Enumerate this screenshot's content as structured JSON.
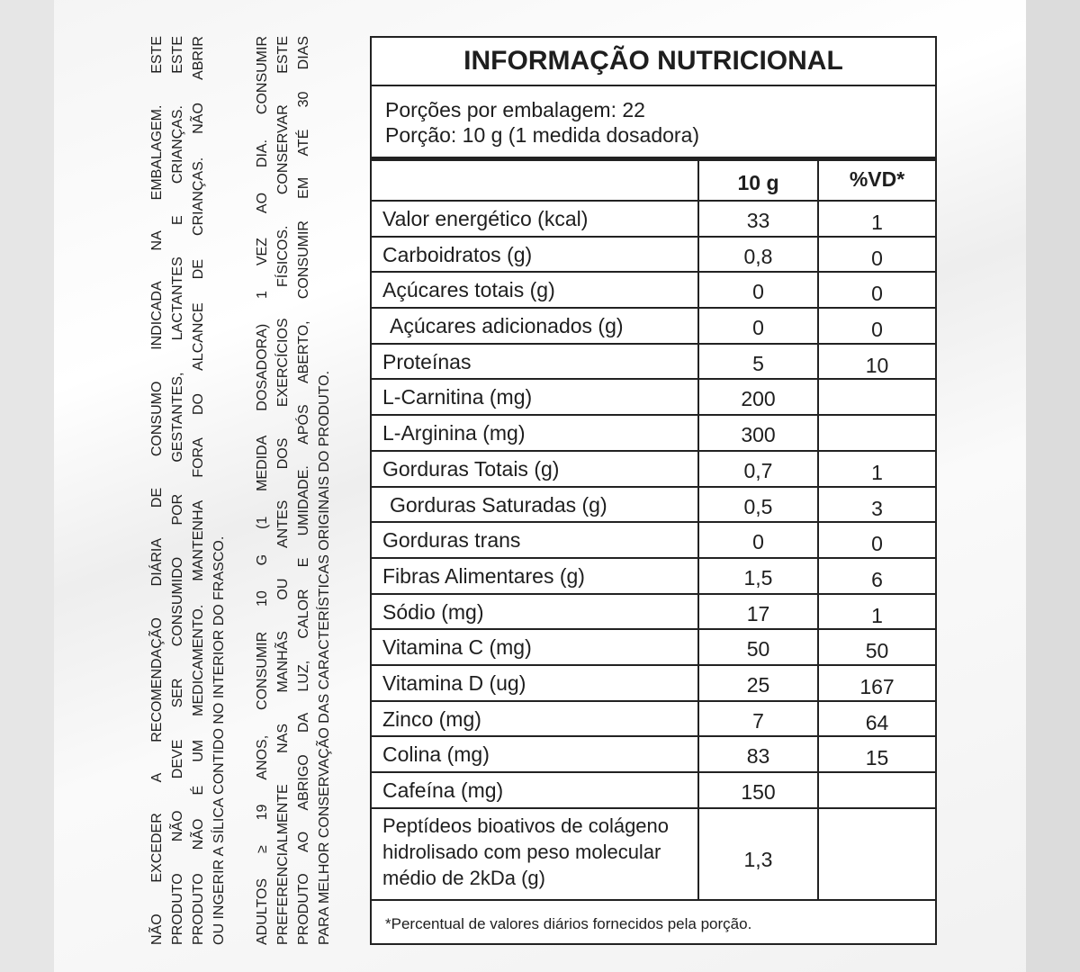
{
  "warnings": {
    "block1": [
      "NÃO EXCEDER A RECOMENDAÇÃO DIÁRIA DE CONSUMO INDICADA NA EMBALAGEM. ESTE",
      "PRODUTO NÃO DEVE SER CONSUMIDO POR GESTANTES, LACTANTES E CRIANÇAS. ESTE",
      "PRODUTO NÃO É UM MEDICAMENTO. MANTENHA FORA DO ALCANCE DE CRIANÇAS. NÃO ABRIR",
      "OU INGERIR A SÍLICA CONTIDO NO INTERIOR DO FRASCO."
    ],
    "block2": [
      "ADULTOS ≥ 19 ANOS, CONSUMIR 10 G (1 MEDIDA DOSADORA) 1 VEZ AO DIA. CONSUMIR",
      "PREFERENCIALMENTE NAS MANHÃS OU ANTES DOS EXERCÍCIOS FÍSICOS. CONSERVAR ESTE",
      "PRODUTO AO ABRIGO DA LUZ, CALOR E UMIDADE. APÓS ABERTO, CONSUMIR EM ATÉ 30 DIAS",
      "PARA MELHOR CONSERVAÇÃO DAS CARACTERÍSTICAS ORIGINAIS DO PRODUTO."
    ]
  },
  "table": {
    "title": "INFORMAÇÃO NUTRICIONAL",
    "servings": "Porções por embalagem: 22",
    "portion": "Porção: 10 g (1 medida dosadora)",
    "headers": [
      "",
      "10 g",
      "%VD*"
    ],
    "rows": [
      [
        "Valor energético (kcal)",
        "33",
        "1"
      ],
      [
        "Carboidratos (g)",
        "0,8",
        "0"
      ],
      [
        "Açúcares totais (g)",
        "0",
        "0"
      ],
      [
        "Açúcares adicionados (g)",
        "0",
        "0"
      ],
      [
        "Proteínas",
        "5",
        "10"
      ],
      [
        "L-Carnitina (mg)",
        "200",
        ""
      ],
      [
        "L-Arginina (mg)",
        "300",
        ""
      ],
      [
        "Gorduras Totais (g)",
        "0,7",
        "1"
      ],
      [
        "Gorduras Saturadas (g)",
        "0,5",
        "3"
      ],
      [
        "Gorduras trans",
        "0",
        "0"
      ],
      [
        "Fibras Alimentares (g)",
        "1,5",
        "6"
      ],
      [
        "Sódio (mg)",
        "17",
        "1"
      ],
      [
        "Vitamina C (mg)",
        "50",
        "50"
      ],
      [
        "Vitamina D (ug)",
        "25",
        "167"
      ],
      [
        "Zinco (mg)",
        "7",
        "64"
      ],
      [
        "Colina (mg)",
        "83",
        "15"
      ],
      [
        "Cafeína (mg)",
        "150",
        ""
      ]
    ],
    "last_row": [
      "Peptídeos bioativos de colágeno hidrolisado com peso molecular médio de 2kDa (g)",
      "1,3",
      ""
    ],
    "footnote": "*Percentual de valores diários fornecidos pela porção."
  }
}
